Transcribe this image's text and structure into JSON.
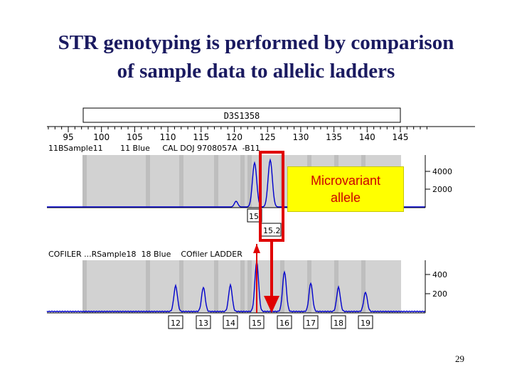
{
  "title": {
    "line1": "STR genotyping is performed by comparison",
    "line2": "of sample data to allelic ladders"
  },
  "locus_label": "D3S1358",
  "scale_ticks": [
    "95",
    "100",
    "105",
    "110",
    "115",
    "120",
    "125",
    "130",
    "135",
    "140",
    "145"
  ],
  "sample_panel": {
    "header": "11BSample11       11 Blue     CAL DOJ 9708057A  -B11",
    "y_ticks": [
      "4000",
      "2000"
    ],
    "allele_labels": [
      "15",
      "15.2"
    ]
  },
  "ladder_panel": {
    "header": "COFILER ...RSample18  18 Blue    COfiler LADDER",
    "y_ticks": [
      "400",
      "200"
    ],
    "allele_labels": [
      "12",
      "13",
      "14",
      "15",
      "16",
      "17",
      "18",
      "19"
    ]
  },
  "callout": {
    "line1": "Microvariant",
    "line2": "allele"
  },
  "page_number": "29",
  "colors": {
    "trace": "#0000cc",
    "highlight": "#e00000",
    "callout_bg": "#ffff00",
    "callout_text": "#cc0000",
    "panel_bg": "#d2d2d2",
    "band": "#bebebe"
  }
}
